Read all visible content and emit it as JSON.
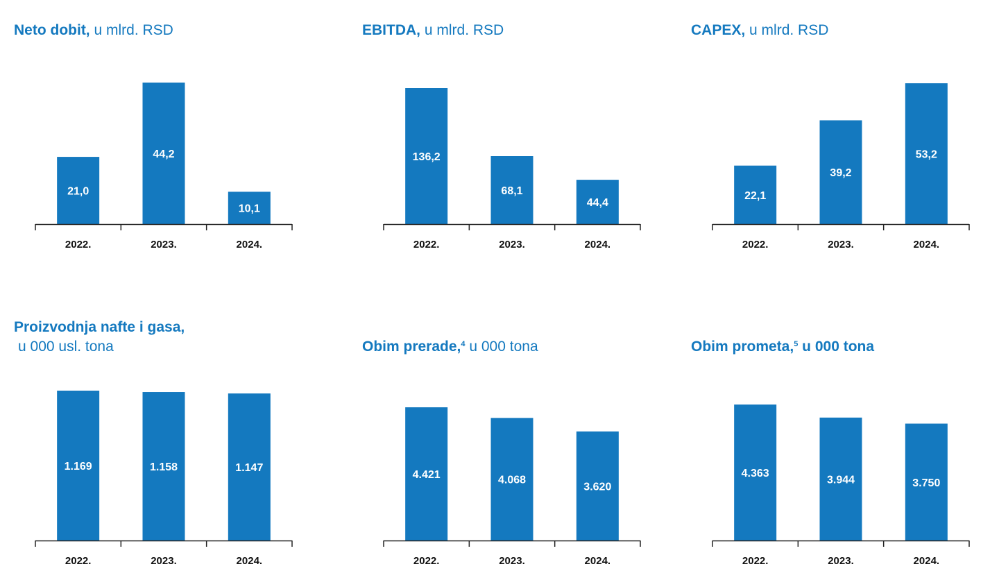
{
  "colors": {
    "bar": "#1479bf",
    "title": "#1479bf",
    "axis": "#222222",
    "bar_label": "#ffffff"
  },
  "chart_data": [
    {
      "type": "bar",
      "title": "Neto dobit,",
      "subtitle": "u mlrd. RSD",
      "categories": [
        "2022.",
        "2023.",
        "2024."
      ],
      "values": [
        21.0,
        44.2,
        10.1
      ],
      "value_labels": [
        "21,0",
        "44,2",
        "10,1"
      ],
      "ylim": [
        0,
        44.2
      ],
      "grid": false,
      "legend": "none"
    },
    {
      "type": "bar",
      "title": "EBITDA,",
      "subtitle": "u mlrd. RSD",
      "categories": [
        "2022.",
        "2023.",
        "2024."
      ],
      "values": [
        136.2,
        68.1,
        44.4
      ],
      "value_labels": [
        "136,2",
        "68,1",
        "44,4"
      ],
      "ylim": [
        0,
        136.2
      ],
      "grid": false,
      "legend": "none"
    },
    {
      "type": "bar",
      "title": "CAPEX,",
      "subtitle": "u mlrd. RSD",
      "categories": [
        "2022.",
        "2023.",
        "2024."
      ],
      "values": [
        22.1,
        39.2,
        53.2
      ],
      "value_labels": [
        "22,1",
        "39,2",
        "53,2"
      ],
      "ylim": [
        0,
        53.2
      ],
      "grid": false,
      "legend": "none"
    },
    {
      "type": "bar",
      "title": "Proizvodnja nafte i gasa,",
      "subtitle": "u 000 usl. tona",
      "categories": [
        "2022.",
        "2023.",
        "2024."
      ],
      "values": [
        1169,
        1158,
        1147
      ],
      "value_labels": [
        "1.169",
        "1.158",
        "1.147"
      ],
      "ylim": [
        0,
        1169
      ],
      "grid": false,
      "legend": "none"
    },
    {
      "type": "bar",
      "title": "Obim prerade,",
      "footnote": "4",
      "subtitle": "u 000 tona",
      "categories": [
        "2022.",
        "2023.",
        "2024."
      ],
      "values": [
        4421,
        4068,
        3620
      ],
      "value_labels": [
        "4.421",
        "4.068",
        "3.620"
      ],
      "ylim": [
        0,
        4421
      ],
      "grid": false,
      "legend": "none"
    },
    {
      "type": "bar",
      "title": "Obim prometa,",
      "footnote": "5",
      "subtitle": "u 000 tona",
      "categories": [
        "2022.",
        "2023.",
        "2024."
      ],
      "values": [
        4363,
        3944,
        3750
      ],
      "value_labels": [
        "4.363",
        "3.944",
        "3.750"
      ],
      "ylim": [
        0,
        4363
      ],
      "grid": false,
      "legend": "none"
    }
  ]
}
